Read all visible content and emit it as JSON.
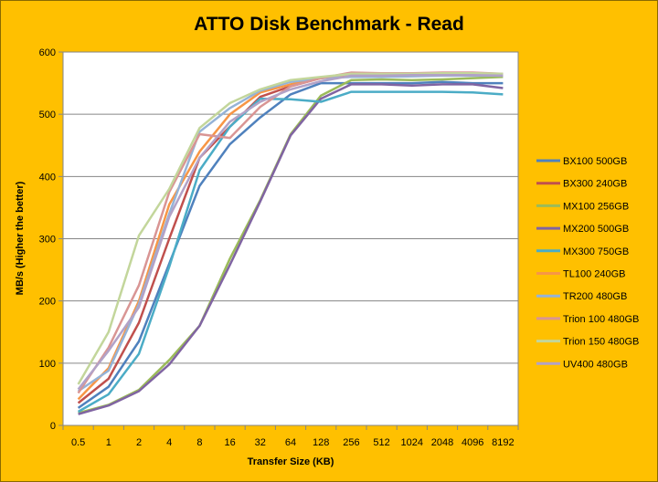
{
  "chart_data": {
    "type": "line",
    "title": "ATTO Disk Benchmark - Read",
    "xlabel": "Transfer Size (KB)",
    "ylabel": "MB/s (Higher the better)",
    "ylim": [
      0,
      600
    ],
    "yticks": [
      0,
      100,
      200,
      300,
      400,
      500,
      600
    ],
    "grid": "horizontal",
    "legend": "right",
    "categories": [
      "0.5",
      "1",
      "2",
      "4",
      "8",
      "16",
      "32",
      "64",
      "128",
      "256",
      "512",
      "1024",
      "2048",
      "4096",
      "8192"
    ],
    "series": [
      {
        "name": "BX100 500GB",
        "color": "#4f81bd",
        "values": [
          28,
          62,
          135,
          260,
          385,
          452,
          495,
          532,
          550,
          550,
          550,
          550,
          552,
          550,
          550
        ]
      },
      {
        "name": "BX300 240GB",
        "color": "#c0504d",
        "values": [
          36,
          75,
          165,
          300,
          430,
          480,
          528,
          545,
          558,
          562,
          562,
          562,
          563,
          563,
          562
        ]
      },
      {
        "name": "MX100 256GB",
        "color": "#9bbb59",
        "values": [
          20,
          33,
          57,
          105,
          160,
          268,
          362,
          468,
          530,
          555,
          556,
          555,
          556,
          558,
          560
        ]
      },
      {
        "name": "MX200 500GB",
        "color": "#8064a2",
        "values": [
          18,
          32,
          55,
          98,
          160,
          258,
          360,
          466,
          525,
          548,
          548,
          546,
          548,
          548,
          542
        ]
      },
      {
        "name": "MX300 750GB",
        "color": "#4bacc6",
        "values": [
          22,
          50,
          115,
          255,
          410,
          480,
          525,
          524,
          520,
          536,
          536,
          536,
          536,
          535,
          532
        ]
      },
      {
        "name": "TL100 240GB",
        "color": "#f79646",
        "values": [
          42,
          92,
          200,
          355,
          440,
          500,
          535,
          548,
          558,
          565,
          565,
          565,
          566,
          565,
          564
        ]
      },
      {
        "name": "TR200 480GB",
        "color": "#95b3d7",
        "values": [
          55,
          88,
          195,
          340,
          472,
          510,
          538,
          552,
          558,
          560,
          560,
          561,
          562,
          562,
          562
        ]
      },
      {
        "name": "Trion 100 480GB",
        "color": "#d99594",
        "values": [
          52,
          125,
          225,
          375,
          468,
          462,
          512,
          545,
          558,
          567,
          566,
          566,
          567,
          567,
          565
        ]
      },
      {
        "name": "Trion 150 480GB",
        "color": "#c3d69b",
        "values": [
          66,
          150,
          305,
          380,
          478,
          518,
          540,
          555,
          560,
          565,
          565,
          565,
          566,
          566,
          565
        ]
      },
      {
        "name": "UV400 480GB",
        "color": "#b2a2c7",
        "values": [
          58,
          120,
          190,
          335,
          430,
          488,
          520,
          540,
          553,
          562,
          562,
          563,
          563,
          563,
          562
        ]
      }
    ]
  }
}
